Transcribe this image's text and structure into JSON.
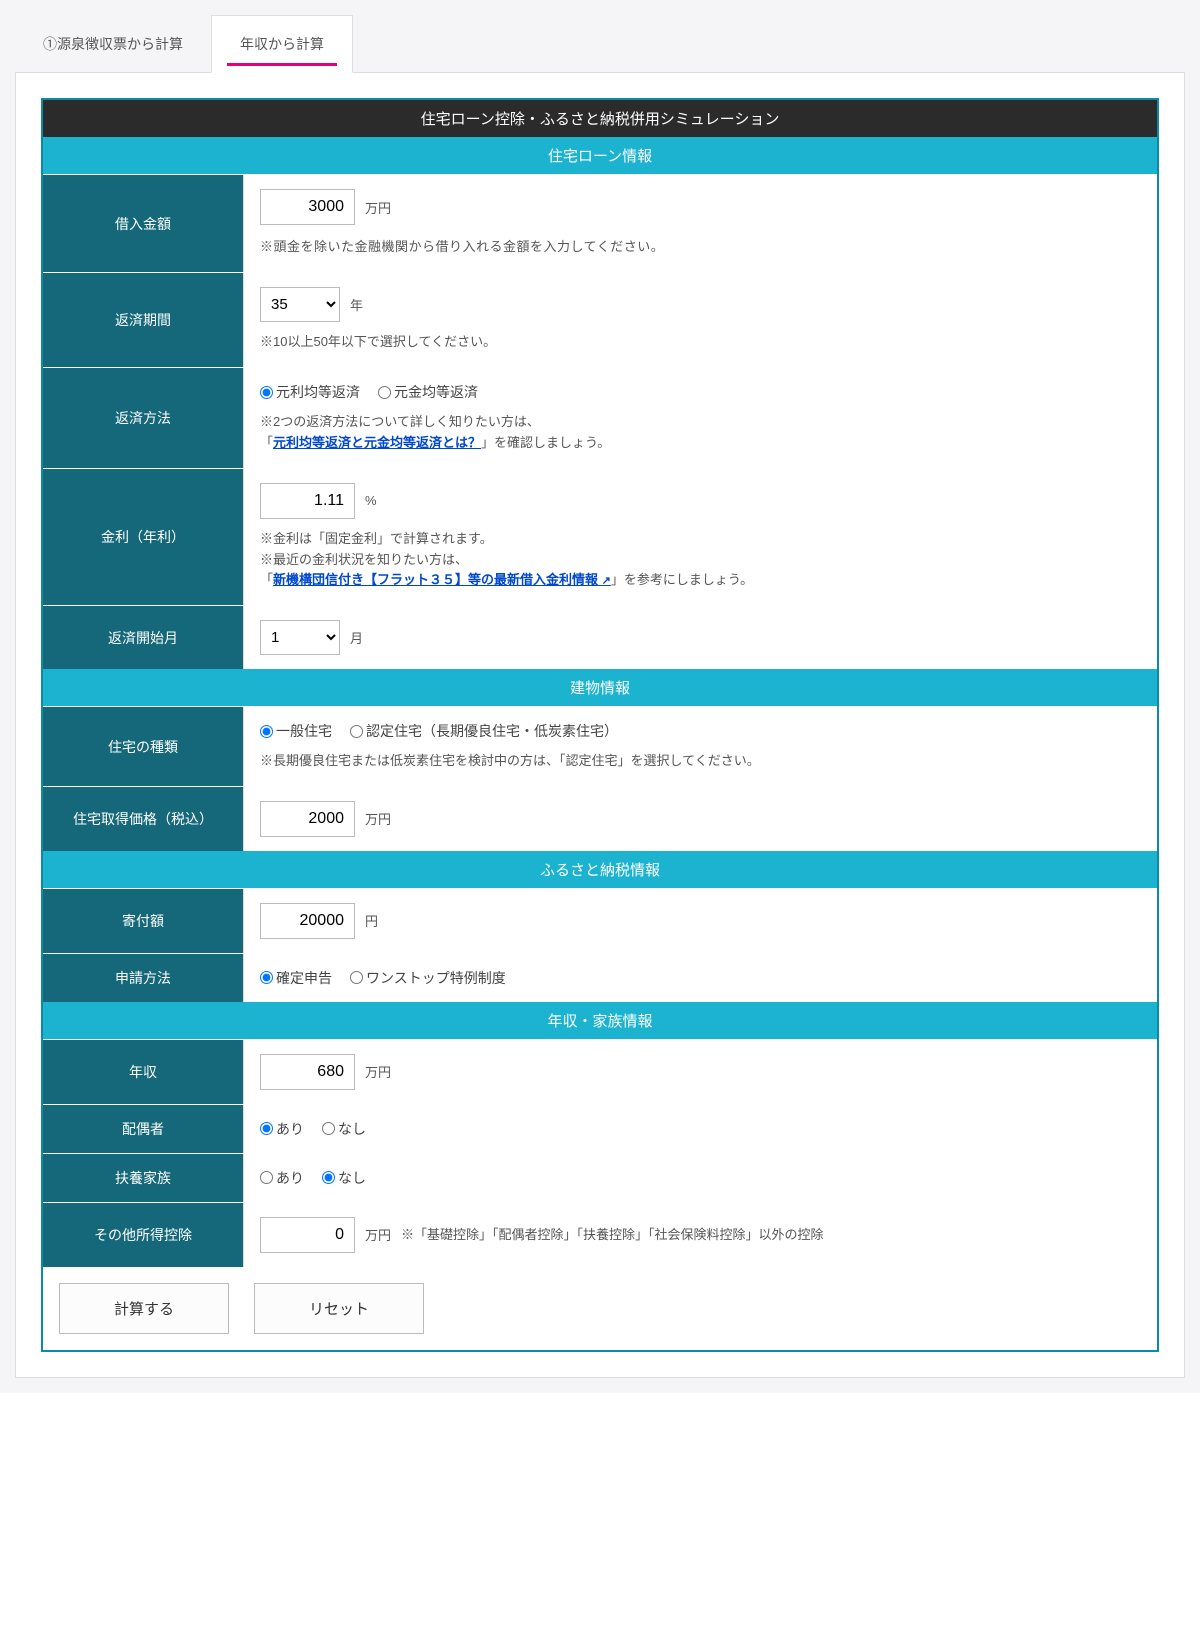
{
  "tabs": {
    "t1": "①源泉徴収票から計算",
    "t2": "年収から計算"
  },
  "titles": {
    "main": "住宅ローン控除・ふるさと納税併用シミュレーション",
    "sec_loan": "住宅ローン情報",
    "sec_building": "建物情報",
    "sec_furusato": "ふるさと納税情報",
    "sec_income": "年収・家族情報"
  },
  "labels": {
    "borrow": "借入金額",
    "period": "返済期間",
    "method": "返済方法",
    "rate": "金利（年利）",
    "start": "返済開始月",
    "house_type": "住宅の種類",
    "house_price": "住宅取得価格（税込）",
    "donation": "寄付額",
    "apply_method": "申請方法",
    "income": "年収",
    "spouse": "配偶者",
    "dependents": "扶養家族",
    "other_deduct": "その他所得控除"
  },
  "values": {
    "borrow": "3000",
    "period": "35",
    "rate": "1.11",
    "start": "1",
    "house_price": "2000",
    "donation": "20000",
    "income": "680",
    "other_deduct": "0"
  },
  "units": {
    "man": "万円",
    "year": "年",
    "pct": "%",
    "month": "月",
    "yen": "円"
  },
  "notes": {
    "borrow": "※頭金を除いた金融機関から借り入れる金額を入力してください。",
    "period": "※10以上50年以下で選択してください。",
    "method1": "※2つの返済方法について詳しく知りたい方は、",
    "method2a": "「",
    "method2b": "」を確認しましょう。",
    "rate1": "※金利は「固定金利」で計算されます。",
    "rate2": "※最近の金利状況を知りたい方は、",
    "rate3a": "「",
    "rate3b": "」を参考にしましょう。",
    "house_type": "※長期優良住宅または低炭素住宅を検討中の方は、「認定住宅」を選択してください。",
    "other_deduct": "※「基礎控除」「配偶者控除」「扶養控除」「社会保険料控除」以外の控除"
  },
  "links": {
    "method": "元利均等返済と元金均等返済とは？",
    "rate": "新機構団信付き【フラット３５】等の最新借入金利情報"
  },
  "radios": {
    "method_a": "元利均等返済",
    "method_b": "元金均等返済",
    "house_a": "一般住宅",
    "house_b": "認定住宅（長期優良住宅・低炭素住宅）",
    "apply_a": "確定申告",
    "apply_b": "ワンストップ特例制度",
    "yes": "あり",
    "no": "なし"
  },
  "buttons": {
    "calc": "計算する",
    "reset": "リセット"
  },
  "colors": {
    "accent_teal": "#146879",
    "accent_cyan": "#1cb3d0",
    "accent_pink": "#e6007e",
    "link": "#0047cc",
    "header_dark": "#2b2b2b"
  }
}
